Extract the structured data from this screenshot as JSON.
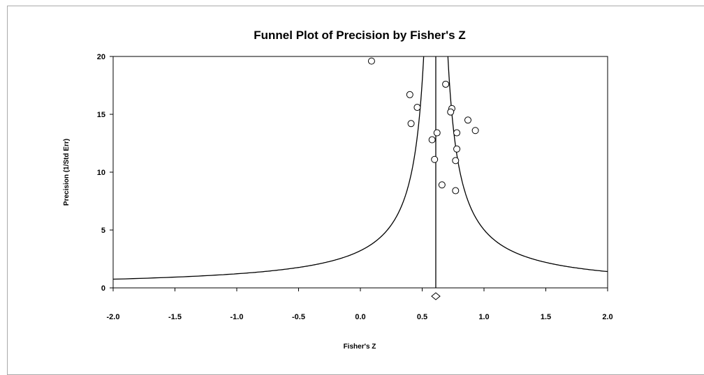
{
  "chart_data": {
    "type": "scatter",
    "title": "Funnel Plot of Precision by Fisher's Z",
    "xlabel": "Fisher's Z",
    "ylabel": "Precision (1/Std Err)",
    "xlim": [
      -2.0,
      2.0
    ],
    "ylim": [
      0,
      20
    ],
    "x_ticks": [
      "-2.0",
      "-1.5",
      "-1.0",
      "-0.5",
      "0.0",
      "0.5",
      "1.0",
      "1.5",
      "2.0"
    ],
    "y_ticks": [
      "0",
      "5",
      "10",
      "15",
      "20"
    ],
    "grid": false,
    "series": [
      {
        "marker": "circle",
        "points": [
          {
            "x": 0.09,
            "y": 19.6
          },
          {
            "x": 0.4,
            "y": 16.7
          },
          {
            "x": 0.46,
            "y": 15.6
          },
          {
            "x": 0.41,
            "y": 14.2
          },
          {
            "x": 0.69,
            "y": 17.6
          },
          {
            "x": 0.74,
            "y": 15.5
          },
          {
            "x": 0.73,
            "y": 15.2
          },
          {
            "x": 0.87,
            "y": 14.5
          },
          {
            "x": 0.93,
            "y": 13.6
          },
          {
            "x": 0.78,
            "y": 13.4
          },
          {
            "x": 0.62,
            "y": 13.4
          },
          {
            "x": 0.58,
            "y": 12.8
          },
          {
            "x": 0.78,
            "y": 12.0
          },
          {
            "x": 0.6,
            "y": 11.1
          },
          {
            "x": 0.77,
            "y": 11.0
          },
          {
            "x": 0.66,
            "y": 8.9
          },
          {
            "x": 0.77,
            "y": 8.4
          }
        ]
      }
    ],
    "combined_effect": 0.61,
    "summary_marker": {
      "shape": "diamond",
      "x": 0.61
    }
  }
}
